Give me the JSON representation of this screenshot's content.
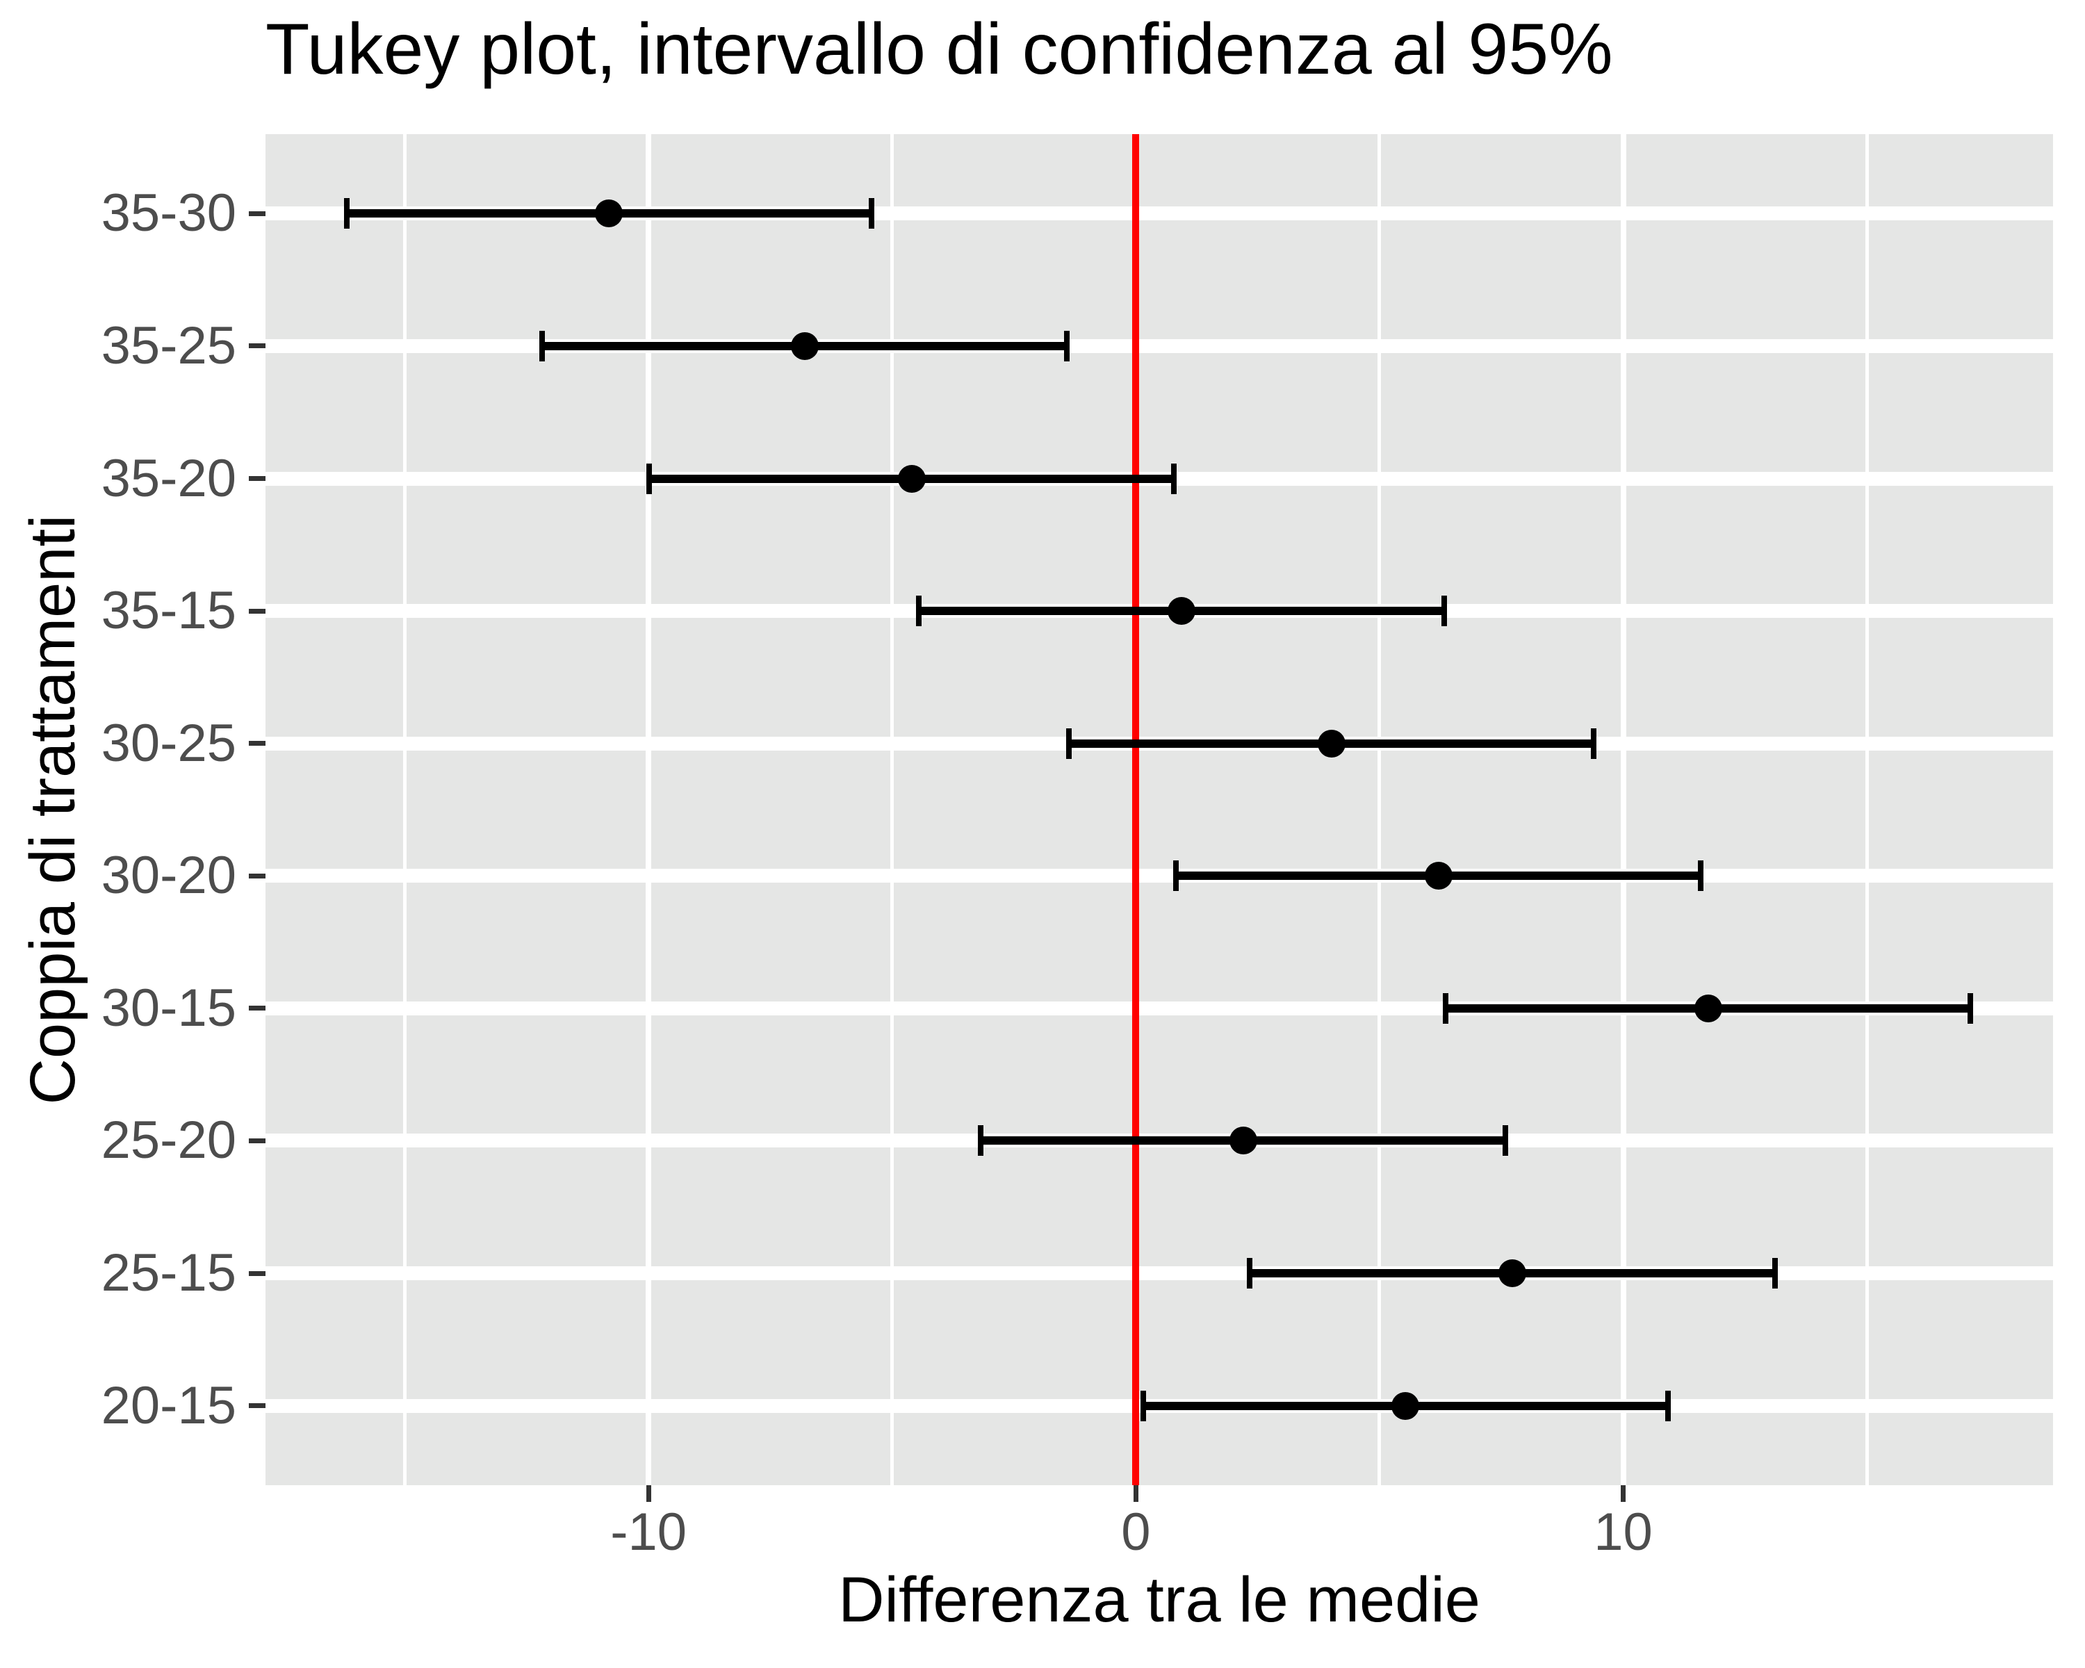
{
  "chart_data": {
    "type": "errorbar",
    "title": "Tukey plot, intervallo di confidenza al 95%",
    "xlabel": "Differenza tra le medie",
    "ylabel": "Coppia di trattamenti",
    "categories": [
      "35-30",
      "35-25",
      "35-20",
      "35-15",
      "30-25",
      "30-20",
      "30-15",
      "25-20",
      "25-15",
      "20-15"
    ],
    "rows": [
      {
        "pair": "35-30",
        "diff": -10.81,
        "lwr": -16.19,
        "upr": -5.42
      },
      {
        "pair": "35-25",
        "diff": -6.8,
        "lwr": -12.18,
        "upr": -1.41
      },
      {
        "pair": "35-20",
        "diff": -4.6,
        "lwr": -9.99,
        "upr": 0.78
      },
      {
        "pair": "35-15",
        "diff": 0.93,
        "lwr": -4.45,
        "upr": 6.32
      },
      {
        "pair": "30-25",
        "diff": 4.01,
        "lwr": -1.38,
        "upr": 9.39
      },
      {
        "pair": "30-20",
        "diff": 6.21,
        "lwr": 0.82,
        "upr": 11.59
      },
      {
        "pair": "30-15",
        "diff": 11.74,
        "lwr": 6.35,
        "upr": 17.12
      },
      {
        "pair": "25-20",
        "diff": 2.2,
        "lwr": -3.19,
        "upr": 7.58
      },
      {
        "pair": "25-15",
        "diff": 7.73,
        "lwr": 2.34,
        "upr": 13.11
      },
      {
        "pair": "20-15",
        "diff": 5.53,
        "lwr": 0.15,
        "upr": 10.92
      }
    ],
    "x_ticks": [
      -10,
      0,
      10
    ],
    "x_tick_labels": [
      "-10",
      "0",
      "10"
    ],
    "x_minor_gridlines": [
      -15,
      -5,
      5,
      15
    ],
    "xlim": [
      -17.86,
      18.82
    ],
    "reference_line": {
      "x": 0,
      "color": "#FF0000"
    },
    "grid": "on",
    "legend": "none",
    "panel_background": "#E5E6E5",
    "point_color": "#000000",
    "errorbar_color": "#000000"
  }
}
